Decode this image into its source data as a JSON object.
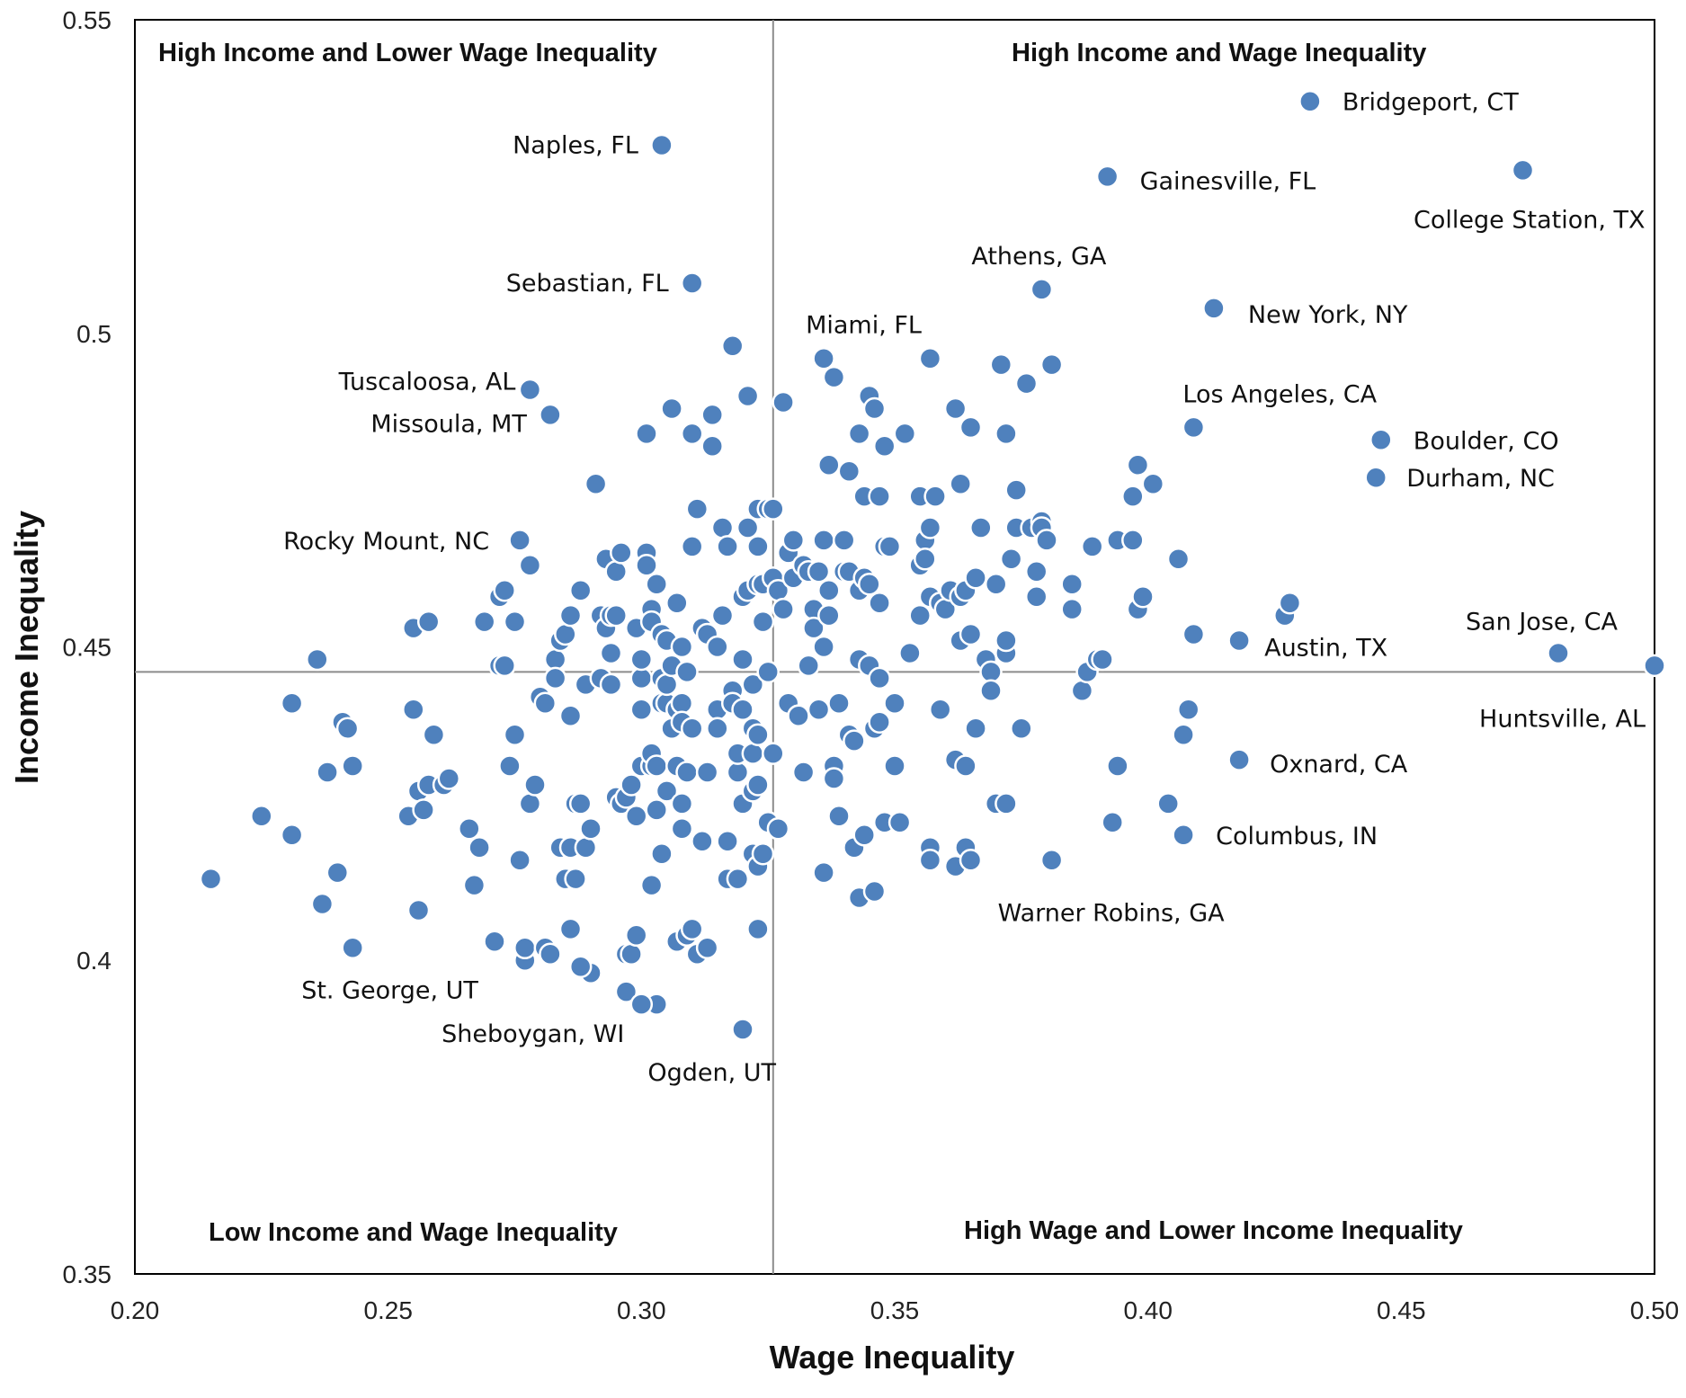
{
  "chart_data": {
    "type": "scatter",
    "title": "",
    "xlabel": "Wage Inequality",
    "ylabel": "Income Inequality",
    "xlim": [
      0.2,
      0.5
    ],
    "ylim": [
      0.35,
      0.55
    ],
    "x_ticks": [
      "0.20",
      "0.25",
      "0.30",
      "0.35",
      "0.40",
      "0.45",
      "0.50"
    ],
    "y_ticks": [
      "0.35",
      "0.4",
      "0.45",
      "0.5",
      "0.55"
    ],
    "grid": false,
    "reference_lines": {
      "x": 0.326,
      "y": 0.446
    },
    "point_color": "#4f81bd",
    "quadrant_labels": {
      "top_left": "High Income and Lower Wage Inequality",
      "top_right": "High Income and Wage Inequality",
      "bottom_left": "Low Income and  Wage Inequality",
      "bottom_right": "High Wage  and Lower Income Inequality"
    },
    "labeled_points": [
      {
        "label": "Bridgeport, CT",
        "x": 0.432,
        "y": 0.537
      },
      {
        "label": "Naples, FL",
        "x": 0.304,
        "y": 0.53
      },
      {
        "label": "Gainesville, FL",
        "x": 0.392,
        "y": 0.525
      },
      {
        "label": "College Station, TX",
        "x": 0.474,
        "y": 0.526
      },
      {
        "label": "Athens,  GA",
        "x": 0.379,
        "y": 0.507
      },
      {
        "label": "Sebastian, FL",
        "x": 0.31,
        "y": 0.508
      },
      {
        "label": "New York, NY",
        "x": 0.413,
        "y": 0.504
      },
      {
        "label": "Miami, FL",
        "x": 0.336,
        "y": 0.496
      },
      {
        "label": "Tuscaloosa, AL",
        "x": 0.278,
        "y": 0.491
      },
      {
        "label": "Missoula, MT",
        "x": 0.282,
        "y": 0.487
      },
      {
        "label": "Los Angeles,  CA",
        "x": 0.409,
        "y": 0.485
      },
      {
        "label": "Boulder,  CO",
        "x": 0.446,
        "y": 0.483
      },
      {
        "label": "Durham, NC",
        "x": 0.445,
        "y": 0.477
      },
      {
        "label": "Rocky Mount,  NC",
        "x": 0.276,
        "y": 0.467
      },
      {
        "label": "San Jose, CA",
        "x": 0.481,
        "y": 0.449
      },
      {
        "label": "Austin, TX",
        "x": 0.418,
        "y": 0.451
      },
      {
        "label": "Huntsville,  AL",
        "x": 0.5,
        "y": 0.447
      },
      {
        "label": "Oxnard, CA",
        "x": 0.418,
        "y": 0.432
      },
      {
        "label": "Columbus, IN",
        "x": 0.407,
        "y": 0.42
      },
      {
        "label": "Warner Robins, GA",
        "x": 0.381,
        "y": 0.416
      },
      {
        "label": "St. George,  UT",
        "x": 0.243,
        "y": 0.402
      },
      {
        "label": "Sheboygan, WI",
        "x": 0.3,
        "y": 0.393
      },
      {
        "label": "Ogden, UT",
        "x": 0.32,
        "y": 0.389
      }
    ],
    "points": [
      [
        0.215,
        0.413
      ],
      [
        0.225,
        0.423
      ],
      [
        0.231,
        0.441
      ],
      [
        0.231,
        0.42
      ],
      [
        0.236,
        0.448
      ],
      [
        0.237,
        0.409
      ],
      [
        0.238,
        0.43
      ],
      [
        0.24,
        0.414
      ],
      [
        0.241,
        0.438
      ],
      [
        0.242,
        0.437
      ],
      [
        0.243,
        0.431
      ],
      [
        0.254,
        0.423
      ],
      [
        0.255,
        0.453
      ],
      [
        0.255,
        0.44
      ],
      [
        0.256,
        0.427
      ],
      [
        0.257,
        0.424
      ],
      [
        0.258,
        0.454
      ],
      [
        0.258,
        0.428
      ],
      [
        0.259,
        0.436
      ],
      [
        0.261,
        0.428
      ],
      [
        0.262,
        0.429
      ],
      [
        0.256,
        0.408
      ],
      [
        0.266,
        0.421
      ],
      [
        0.267,
        0.412
      ],
      [
        0.268,
        0.418
      ],
      [
        0.269,
        0.454
      ],
      [
        0.271,
        0.403
      ],
      [
        0.272,
        0.447
      ],
      [
        0.272,
        0.458
      ],
      [
        0.273,
        0.447
      ],
      [
        0.273,
        0.459
      ],
      [
        0.274,
        0.431
      ],
      [
        0.275,
        0.436
      ],
      [
        0.275,
        0.454
      ],
      [
        0.276,
        0.416
      ],
      [
        0.277,
        0.4
      ],
      [
        0.277,
        0.402
      ],
      [
        0.278,
        0.463
      ],
      [
        0.278,
        0.425
      ],
      [
        0.279,
        0.428
      ],
      [
        0.28,
        0.442
      ],
      [
        0.281,
        0.441
      ],
      [
        0.281,
        0.402
      ],
      [
        0.282,
        0.401
      ],
      [
        0.283,
        0.448
      ],
      [
        0.283,
        0.445
      ],
      [
        0.284,
        0.418
      ],
      [
        0.284,
        0.451
      ],
      [
        0.285,
        0.413
      ],
      [
        0.285,
        0.452
      ],
      [
        0.286,
        0.455
      ],
      [
        0.286,
        0.418
      ],
      [
        0.286,
        0.439
      ],
      [
        0.287,
        0.413
      ],
      [
        0.287,
        0.425
      ],
      [
        0.288,
        0.459
      ],
      [
        0.288,
        0.425
      ],
      [
        0.289,
        0.418
      ],
      [
        0.289,
        0.444
      ],
      [
        0.29,
        0.421
      ],
      [
        0.29,
        0.398
      ],
      [
        0.288,
        0.399
      ],
      [
        0.286,
        0.405
      ],
      [
        0.291,
        0.476
      ],
      [
        0.292,
        0.455
      ],
      [
        0.292,
        0.445
      ],
      [
        0.293,
        0.453
      ],
      [
        0.293,
        0.464
      ],
      [
        0.294,
        0.455
      ],
      [
        0.294,
        0.449
      ],
      [
        0.294,
        0.444
      ],
      [
        0.295,
        0.462
      ],
      [
        0.295,
        0.426
      ],
      [
        0.295,
        0.455
      ],
      [
        0.296,
        0.465
      ],
      [
        0.296,
        0.425
      ],
      [
        0.297,
        0.395
      ],
      [
        0.297,
        0.401
      ],
      [
        0.297,
        0.426
      ],
      [
        0.298,
        0.401
      ],
      [
        0.298,
        0.428
      ],
      [
        0.299,
        0.423
      ],
      [
        0.299,
        0.453
      ],
      [
        0.299,
        0.404
      ],
      [
        0.3,
        0.44
      ],
      [
        0.3,
        0.431
      ],
      [
        0.3,
        0.445
      ],
      [
        0.3,
        0.448
      ],
      [
        0.301,
        0.484
      ],
      [
        0.301,
        0.465
      ],
      [
        0.301,
        0.463
      ],
      [
        0.302,
        0.456
      ],
      [
        0.302,
        0.454
      ],
      [
        0.302,
        0.431
      ],
      [
        0.302,
        0.433
      ],
      [
        0.302,
        0.412
      ],
      [
        0.303,
        0.46
      ],
      [
        0.303,
        0.431
      ],
      [
        0.303,
        0.424
      ],
      [
        0.303,
        0.393
      ],
      [
        0.304,
        0.441
      ],
      [
        0.304,
        0.445
      ],
      [
        0.304,
        0.452
      ],
      [
        0.304,
        0.417
      ],
      [
        0.305,
        0.441
      ],
      [
        0.305,
        0.451
      ],
      [
        0.305,
        0.427
      ],
      [
        0.305,
        0.444
      ],
      [
        0.306,
        0.488
      ],
      [
        0.306,
        0.437
      ],
      [
        0.306,
        0.447
      ],
      [
        0.307,
        0.457
      ],
      [
        0.307,
        0.44
      ],
      [
        0.307,
        0.431
      ],
      [
        0.307,
        0.403
      ],
      [
        0.308,
        0.45
      ],
      [
        0.308,
        0.441
      ],
      [
        0.308,
        0.438
      ],
      [
        0.308,
        0.425
      ],
      [
        0.308,
        0.421
      ],
      [
        0.309,
        0.446
      ],
      [
        0.309,
        0.43
      ],
      [
        0.309,
        0.404
      ],
      [
        0.31,
        0.466
      ],
      [
        0.31,
        0.437
      ],
      [
        0.31,
        0.484
      ],
      [
        0.31,
        0.405
      ],
      [
        0.311,
        0.472
      ],
      [
        0.311,
        0.401
      ],
      [
        0.312,
        0.453
      ],
      [
        0.312,
        0.419
      ],
      [
        0.313,
        0.43
      ],
      [
        0.313,
        0.452
      ],
      [
        0.313,
        0.402
      ],
      [
        0.314,
        0.487
      ],
      [
        0.314,
        0.482
      ],
      [
        0.315,
        0.44
      ],
      [
        0.315,
        0.45
      ],
      [
        0.315,
        0.437
      ],
      [
        0.316,
        0.469
      ],
      [
        0.316,
        0.455
      ],
      [
        0.317,
        0.413
      ],
      [
        0.317,
        0.419
      ],
      [
        0.317,
        0.466
      ],
      [
        0.318,
        0.498
      ],
      [
        0.318,
        0.443
      ],
      [
        0.318,
        0.441
      ],
      [
        0.319,
        0.43
      ],
      [
        0.319,
        0.433
      ],
      [
        0.319,
        0.413
      ],
      [
        0.32,
        0.458
      ],
      [
        0.32,
        0.448
      ],
      [
        0.32,
        0.44
      ],
      [
        0.32,
        0.425
      ],
      [
        0.321,
        0.49
      ],
      [
        0.321,
        0.469
      ],
      [
        0.321,
        0.459
      ],
      [
        0.322,
        0.444
      ],
      [
        0.322,
        0.437
      ],
      [
        0.322,
        0.433
      ],
      [
        0.322,
        0.427
      ],
      [
        0.322,
        0.417
      ],
      [
        0.323,
        0.472
      ],
      [
        0.323,
        0.466
      ],
      [
        0.323,
        0.46
      ],
      [
        0.323,
        0.436
      ],
      [
        0.323,
        0.428
      ],
      [
        0.323,
        0.415
      ],
      [
        0.323,
        0.405
      ],
      [
        0.324,
        0.454
      ],
      [
        0.324,
        0.46
      ],
      [
        0.324,
        0.417
      ],
      [
        0.325,
        0.446
      ],
      [
        0.325,
        0.472
      ],
      [
        0.325,
        0.422
      ],
      [
        0.326,
        0.461
      ],
      [
        0.326,
        0.433
      ],
      [
        0.326,
        0.472
      ],
      [
        0.327,
        0.459
      ],
      [
        0.327,
        0.421
      ],
      [
        0.328,
        0.489
      ],
      [
        0.328,
        0.456
      ],
      [
        0.329,
        0.441
      ],
      [
        0.329,
        0.465
      ],
      [
        0.33,
        0.467
      ],
      [
        0.33,
        0.461
      ],
      [
        0.331,
        0.439
      ],
      [
        0.331,
        0.439
      ],
      [
        0.332,
        0.463
      ],
      [
        0.332,
        0.43
      ],
      [
        0.333,
        0.447
      ],
      [
        0.333,
        0.462
      ],
      [
        0.334,
        0.456
      ],
      [
        0.334,
        0.453
      ],
      [
        0.335,
        0.462
      ],
      [
        0.335,
        0.44
      ],
      [
        0.336,
        0.45
      ],
      [
        0.336,
        0.467
      ],
      [
        0.336,
        0.414
      ],
      [
        0.337,
        0.479
      ],
      [
        0.337,
        0.459
      ],
      [
        0.337,
        0.455
      ],
      [
        0.338,
        0.493
      ],
      [
        0.338,
        0.431
      ],
      [
        0.338,
        0.429
      ],
      [
        0.339,
        0.441
      ],
      [
        0.339,
        0.423
      ],
      [
        0.34,
        0.467
      ],
      [
        0.34,
        0.462
      ],
      [
        0.341,
        0.478
      ],
      [
        0.341,
        0.462
      ],
      [
        0.341,
        0.436
      ],
      [
        0.342,
        0.435
      ],
      [
        0.342,
        0.418
      ],
      [
        0.343,
        0.484
      ],
      [
        0.343,
        0.459
      ],
      [
        0.343,
        0.448
      ],
      [
        0.343,
        0.41
      ],
      [
        0.344,
        0.474
      ],
      [
        0.344,
        0.461
      ],
      [
        0.344,
        0.42
      ],
      [
        0.345,
        0.49
      ],
      [
        0.345,
        0.46
      ],
      [
        0.345,
        0.447
      ],
      [
        0.346,
        0.488
      ],
      [
        0.346,
        0.437
      ],
      [
        0.346,
        0.411
      ],
      [
        0.347,
        0.474
      ],
      [
        0.347,
        0.457
      ],
      [
        0.347,
        0.445
      ],
      [
        0.347,
        0.438
      ],
      [
        0.348,
        0.482
      ],
      [
        0.348,
        0.466
      ],
      [
        0.348,
        0.422
      ],
      [
        0.349,
        0.466
      ],
      [
        0.35,
        0.441
      ],
      [
        0.35,
        0.431
      ],
      [
        0.351,
        0.422
      ],
      [
        0.352,
        0.484
      ],
      [
        0.353,
        0.449
      ],
      [
        0.355,
        0.474
      ],
      [
        0.355,
        0.463
      ],
      [
        0.355,
        0.455
      ],
      [
        0.356,
        0.467
      ],
      [
        0.356,
        0.464
      ],
      [
        0.357,
        0.496
      ],
      [
        0.357,
        0.469
      ],
      [
        0.357,
        0.458
      ],
      [
        0.357,
        0.418
      ],
      [
        0.357,
        0.416
      ],
      [
        0.358,
        0.474
      ],
      [
        0.359,
        0.44
      ],
      [
        0.359,
        0.457
      ],
      [
        0.36,
        0.456
      ],
      [
        0.361,
        0.459
      ],
      [
        0.362,
        0.415
      ],
      [
        0.362,
        0.432
      ],
      [
        0.362,
        0.488
      ],
      [
        0.363,
        0.476
      ],
      [
        0.363,
        0.458
      ],
      [
        0.363,
        0.451
      ],
      [
        0.364,
        0.459
      ],
      [
        0.364,
        0.418
      ],
      [
        0.364,
        0.431
      ],
      [
        0.365,
        0.485
      ],
      [
        0.365,
        0.416
      ],
      [
        0.365,
        0.452
      ],
      [
        0.366,
        0.437
      ],
      [
        0.366,
        0.461
      ],
      [
        0.367,
        0.469
      ],
      [
        0.368,
        0.448
      ],
      [
        0.369,
        0.446
      ],
      [
        0.369,
        0.443
      ],
      [
        0.37,
        0.46
      ],
      [
        0.37,
        0.425
      ],
      [
        0.371,
        0.495
      ],
      [
        0.372,
        0.484
      ],
      [
        0.372,
        0.425
      ],
      [
        0.372,
        0.449
      ],
      [
        0.372,
        0.451
      ],
      [
        0.373,
        0.464
      ],
      [
        0.374,
        0.475
      ],
      [
        0.374,
        0.469
      ],
      [
        0.375,
        0.437
      ],
      [
        0.376,
        0.492
      ],
      [
        0.377,
        0.469
      ],
      [
        0.378,
        0.462
      ],
      [
        0.378,
        0.458
      ],
      [
        0.379,
        0.47
      ],
      [
        0.379,
        0.469
      ],
      [
        0.38,
        0.467
      ],
      [
        0.381,
        0.495
      ],
      [
        0.385,
        0.46
      ],
      [
        0.385,
        0.456
      ],
      [
        0.387,
        0.443
      ],
      [
        0.388,
        0.446
      ],
      [
        0.389,
        0.466
      ],
      [
        0.39,
        0.448
      ],
      [
        0.391,
        0.448
      ],
      [
        0.393,
        0.422
      ],
      [
        0.394,
        0.431
      ],
      [
        0.394,
        0.467
      ],
      [
        0.397,
        0.474
      ],
      [
        0.397,
        0.467
      ],
      [
        0.398,
        0.456
      ],
      [
        0.398,
        0.479
      ],
      [
        0.399,
        0.458
      ],
      [
        0.401,
        0.476
      ],
      [
        0.404,
        0.425
      ],
      [
        0.406,
        0.464
      ],
      [
        0.407,
        0.436
      ],
      [
        0.408,
        0.44
      ],
      [
        0.409,
        0.452
      ],
      [
        0.427,
        0.455
      ],
      [
        0.428,
        0.457
      ]
    ]
  }
}
